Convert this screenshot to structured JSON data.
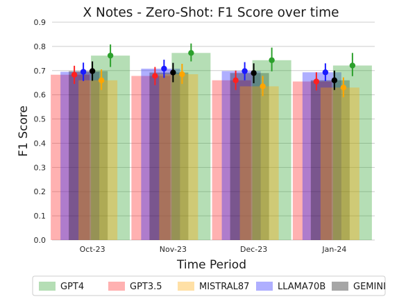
{
  "chart_data": {
    "type": "bar",
    "title": "X Notes - Zero-Shot: F1 Score over time",
    "xlabel": "Time Period",
    "ylabel": "F1 Score",
    "ylim": [
      0,
      0.9
    ],
    "yticks": [
      "0.0",
      "0.1",
      "0.2",
      "0.3",
      "0.4",
      "0.5",
      "0.6",
      "0.7",
      "0.8",
      "0.9"
    ],
    "categories": [
      "Oct-23",
      "Nov-23",
      "Dec-23",
      "Jan-24"
    ],
    "grid": true,
    "legend_placement": "bottom",
    "series": [
      {
        "name": "GPT4",
        "color": "#2ca02c",
        "bar_opacity": 0.35,
        "values": [
          0.762,
          0.773,
          0.743,
          0.721
        ],
        "point_values": [
          0.762,
          0.773,
          0.743,
          0.721
        ],
        "err_low": [
          0.715,
          0.738,
          0.697,
          0.677
        ],
        "err_high": [
          0.808,
          0.812,
          0.795,
          0.773
        ]
      },
      {
        "name": "GPT3.5",
        "color": "#ff2020",
        "bar_opacity": 0.35,
        "values": [
          0.683,
          0.678,
          0.66,
          0.655
        ],
        "point_values": [
          0.683,
          0.678,
          0.66,
          0.655
        ],
        "err_low": [
          0.645,
          0.64,
          0.62,
          0.618
        ],
        "err_high": [
          0.72,
          0.715,
          0.7,
          0.693
        ]
      },
      {
        "name": "MISTRAL87",
        "color": "#ffa500",
        "bar_opacity": 0.35,
        "values": [
          0.66,
          0.685,
          0.635,
          0.63
        ],
        "point_values": [
          0.66,
          0.685,
          0.635,
          0.63
        ],
        "err_low": [
          0.62,
          0.645,
          0.595,
          0.59
        ],
        "err_high": [
          0.705,
          0.728,
          0.678,
          0.672
        ]
      },
      {
        "name": "LLAMA70B",
        "color": "#1a1aff",
        "bar_opacity": 0.35,
        "values": [
          0.695,
          0.708,
          0.698,
          0.693
        ],
        "point_values": [
          0.695,
          0.708,
          0.698,
          0.693
        ],
        "err_low": [
          0.657,
          0.67,
          0.66,
          0.657
        ],
        "err_high": [
          0.733,
          0.745,
          0.735,
          0.73
        ]
      },
      {
        "name": "GEMINI",
        "color": "#000000",
        "bar_opacity": 0.3,
        "values": [
          0.698,
          0.692,
          0.69,
          0.66
        ],
        "point_values": [
          0.698,
          0.692,
          0.69,
          0.66
        ],
        "err_low": [
          0.658,
          0.652,
          0.648,
          0.62
        ],
        "err_high": [
          0.738,
          0.732,
          0.73,
          0.7
        ]
      }
    ]
  }
}
